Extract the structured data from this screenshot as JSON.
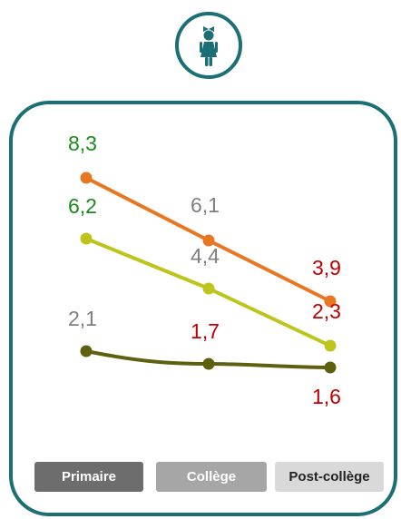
{
  "icon": {
    "name": "child-girl-icon",
    "color": "#1b6f75"
  },
  "chart_data": {
    "type": "line",
    "categories": [
      "Primaire",
      "Collège",
      "Post-collège"
    ],
    "series": [
      {
        "values": [
          8.3,
          6.1,
          3.9
        ],
        "color": "#e87722",
        "labels": [
          "8,3",
          "6,1",
          "3,9"
        ],
        "label_colors": [
          "#1a8a1a",
          "#7f7f7f",
          "#c00000"
        ]
      },
      {
        "values": [
          6.2,
          4.4,
          2.3
        ],
        "color": "#bdc41c",
        "labels": [
          "6,2",
          "4,4",
          "2,3"
        ],
        "label_colors": [
          "#1a8a1a",
          "#7f7f7f",
          "#c00000"
        ]
      },
      {
        "values": [
          2.1,
          1.7,
          1.6
        ],
        "color": "#5e600f",
        "labels": [
          "2,1",
          "1,7",
          "1,6"
        ],
        "label_colors": [
          "#7f7f7f",
          "#c00000",
          "#c00000"
        ]
      }
    ],
    "ylim": [
      1.6,
      8.3
    ],
    "grid": false,
    "legend": "none"
  }
}
